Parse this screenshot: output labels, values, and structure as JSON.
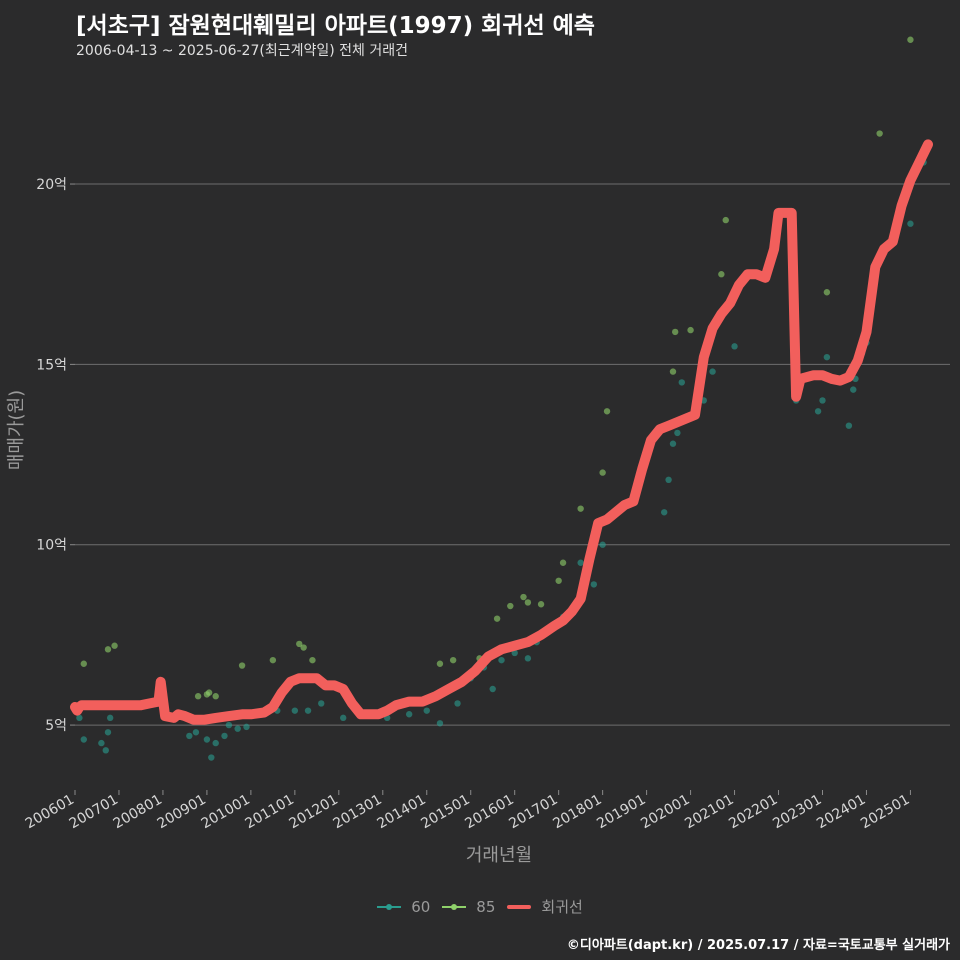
{
  "header": {
    "title": "[서초구] 잠원현대훼밀리 아파트(1997) 회귀선 예측",
    "subtitle": "2006-04-13 ~ 2025-06-27(최근계약일) 전체 거래건"
  },
  "legend": [
    {
      "label": "60",
      "color": "#2a9d8f",
      "kind": "point"
    },
    {
      "label": "85",
      "color": "#8fd16a",
      "kind": "point"
    },
    {
      "label": "회귀선",
      "color": "#f25f5c",
      "kind": "line"
    }
  ],
  "credit": "©디아파트(dapt.kr) / 2025.07.17 / 자료=국토교통부 실거래가",
  "chart_data": {
    "type": "scatter",
    "title": "[서초구] 잠원현대훼밀리 아파트(1997) 회귀선 예측",
    "xlabel": "거래년월",
    "ylabel": "매매가(원)",
    "xlim": [
      2006.0,
      2025.9
    ],
    "ylim": [
      3.2,
      23.3
    ],
    "y_unit": "억",
    "y_ticks": [
      5,
      10,
      15,
      20
    ],
    "y_tick_labels": [
      "5억",
      "10억",
      "15억",
      "20억"
    ],
    "x_ticks": [
      2006,
      2007,
      2008,
      2009,
      2010,
      2011,
      2012,
      2013,
      2014,
      2015,
      2016,
      2017,
      2018,
      2019,
      2020,
      2021,
      2022,
      2023,
      2024,
      2025
    ],
    "x_tick_labels": [
      "200601",
      "200701",
      "200801",
      "200901",
      "201001",
      "201101",
      "201201",
      "201301",
      "201401",
      "201501",
      "201601",
      "201701",
      "201801",
      "201901",
      "202001",
      "202101",
      "202201",
      "202301",
      "202401",
      "202501"
    ],
    "grid": "horizontal",
    "legend_position": "bottom",
    "series": [
      {
        "name": "60",
        "color": "#2a9d8f",
        "points": [
          [
            2006.1,
            5.2
          ],
          [
            2006.2,
            4.6
          ],
          [
            2006.6,
            4.5
          ],
          [
            2006.7,
            4.3
          ],
          [
            2006.75,
            4.8
          ],
          [
            2006.8,
            5.2
          ],
          [
            2008.6,
            4.7
          ],
          [
            2008.75,
            4.8
          ],
          [
            2009.0,
            4.6
          ],
          [
            2009.1,
            4.1
          ],
          [
            2009.2,
            4.5
          ],
          [
            2009.4,
            4.7
          ],
          [
            2009.5,
            5.0
          ],
          [
            2009.7,
            4.9
          ],
          [
            2009.9,
            4.95
          ],
          [
            2010.6,
            5.4
          ],
          [
            2011.0,
            5.4
          ],
          [
            2011.3,
            5.4
          ],
          [
            2011.6,
            5.6
          ],
          [
            2012.1,
            5.2
          ],
          [
            2012.5,
            5.3
          ],
          [
            2013.1,
            5.2
          ],
          [
            2013.6,
            5.3
          ],
          [
            2014.0,
            5.4
          ],
          [
            2014.3,
            5.05
          ],
          [
            2014.7,
            5.6
          ],
          [
            2015.0,
            6.3
          ],
          [
            2015.3,
            6.6
          ],
          [
            2015.5,
            6.0
          ],
          [
            2015.7,
            6.8
          ],
          [
            2016.0,
            7.0
          ],
          [
            2016.3,
            6.85
          ],
          [
            2016.5,
            7.3
          ],
          [
            2017.1,
            8.0
          ],
          [
            2017.5,
            9.5
          ],
          [
            2017.8,
            8.9
          ],
          [
            2018.0,
            10.0
          ],
          [
            2018.8,
            11.5
          ],
          [
            2019.4,
            10.9
          ],
          [
            2019.5,
            11.8
          ],
          [
            2019.6,
            12.8
          ],
          [
            2019.7,
            13.1
          ],
          [
            2019.8,
            14.5
          ],
          [
            2020.3,
            14.0
          ],
          [
            2020.5,
            14.8
          ],
          [
            2021.0,
            15.5
          ],
          [
            2022.4,
            14.0
          ],
          [
            2022.9,
            13.7
          ],
          [
            2023.0,
            14.0
          ],
          [
            2023.1,
            15.2
          ],
          [
            2023.6,
            13.3
          ],
          [
            2023.7,
            14.3
          ],
          [
            2023.75,
            14.6
          ],
          [
            2023.9,
            15.3
          ],
          [
            2024.0,
            15.6
          ],
          [
            2025.0,
            18.9
          ],
          [
            2025.3,
            20.6
          ]
        ]
      },
      {
        "name": "85",
        "color": "#8fd16a",
        "points": [
          [
            2006.2,
            6.7
          ],
          [
            2006.75,
            7.1
          ],
          [
            2006.9,
            7.2
          ],
          [
            2008.0,
            6.0
          ],
          [
            2008.8,
            5.8
          ],
          [
            2009.0,
            5.85
          ],
          [
            2009.05,
            5.9
          ],
          [
            2009.2,
            5.8
          ],
          [
            2009.8,
            6.65
          ],
          [
            2010.5,
            6.8
          ],
          [
            2011.1,
            7.25
          ],
          [
            2011.2,
            7.15
          ],
          [
            2011.4,
            6.8
          ],
          [
            2014.3,
            6.7
          ],
          [
            2014.6,
            6.8
          ],
          [
            2015.2,
            6.85
          ],
          [
            2015.6,
            7.95
          ],
          [
            2015.9,
            8.3
          ],
          [
            2016.2,
            8.55
          ],
          [
            2016.3,
            8.4
          ],
          [
            2016.6,
            8.35
          ],
          [
            2017.0,
            9.0
          ],
          [
            2017.1,
            9.5
          ],
          [
            2017.5,
            11.0
          ],
          [
            2018.0,
            12.0
          ],
          [
            2018.1,
            13.7
          ],
          [
            2019.6,
            14.8
          ],
          [
            2019.65,
            15.9
          ],
          [
            2020.0,
            15.95
          ],
          [
            2020.7,
            17.5
          ],
          [
            2020.8,
            19.0
          ],
          [
            2023.1,
            17.0
          ],
          [
            2024.3,
            21.4
          ],
          [
            2024.9,
            19.6
          ],
          [
            2025.0,
            24.0
          ]
        ]
      }
    ],
    "regression": {
      "name": "회귀선",
      "color": "#f25f5c",
      "x": [
        2006.0,
        2006.05,
        2006.1,
        2006.15,
        2007.0,
        2007.5,
        2007.7,
        2007.9,
        2007.95,
        2008.05,
        2008.25,
        2008.35,
        2008.5,
        2008.7,
        2008.95,
        2009.2,
        2009.5,
        2009.8,
        2010.0,
        2010.3,
        2010.5,
        2010.7,
        2010.9,
        2011.1,
        2011.3,
        2011.5,
        2011.7,
        2011.9,
        2012.1,
        2012.3,
        2012.5,
        2012.7,
        2012.9,
        2013.1,
        2013.3,
        2013.6,
        2013.9,
        2014.2,
        2014.5,
        2014.8,
        2015.1,
        2015.4,
        2015.7,
        2016.0,
        2016.3,
        2016.6,
        2016.9,
        2017.1,
        2017.3,
        2017.5,
        2017.7,
        2017.9,
        2018.1,
        2018.3,
        2018.5,
        2018.7,
        2018.9,
        2019.1,
        2019.3,
        2019.5,
        2019.7,
        2019.9,
        2020.1,
        2020.3,
        2020.5,
        2020.7,
        2020.9,
        2021.1,
        2021.3,
        2021.5,
        2021.7,
        2021.9,
        2022.0,
        2022.3,
        2022.4,
        2022.5,
        2022.8,
        2023.0,
        2023.2,
        2023.4,
        2023.6,
        2023.8,
        2024.0,
        2024.2,
        2024.4,
        2024.6,
        2024.8,
        2025.0,
        2025.2,
        2025.4
      ],
      "y": [
        5.5,
        5.4,
        5.5,
        5.55,
        5.55,
        5.55,
        5.6,
        5.65,
        6.2,
        5.25,
        5.2,
        5.3,
        5.25,
        5.15,
        5.15,
        5.2,
        5.25,
        5.3,
        5.3,
        5.35,
        5.5,
        5.9,
        6.2,
        6.3,
        6.3,
        6.3,
        6.1,
        6.1,
        6.0,
        5.6,
        5.3,
        5.3,
        5.3,
        5.4,
        5.55,
        5.65,
        5.65,
        5.8,
        6.0,
        6.2,
        6.5,
        6.9,
        7.1,
        7.2,
        7.3,
        7.5,
        7.75,
        7.9,
        8.15,
        8.5,
        9.6,
        10.6,
        10.7,
        10.9,
        11.1,
        11.2,
        12.1,
        12.9,
        13.2,
        13.3,
        13.4,
        13.5,
        13.6,
        15.2,
        16.0,
        16.4,
        16.7,
        17.2,
        17.5,
        17.5,
        17.4,
        18.2,
        19.2,
        19.2,
        14.1,
        14.6,
        14.7,
        14.7,
        14.6,
        14.55,
        14.65,
        15.1,
        15.9,
        17.7,
        18.2,
        18.4,
        19.4,
        20.1,
        20.6,
        21.1
      ]
    }
  }
}
